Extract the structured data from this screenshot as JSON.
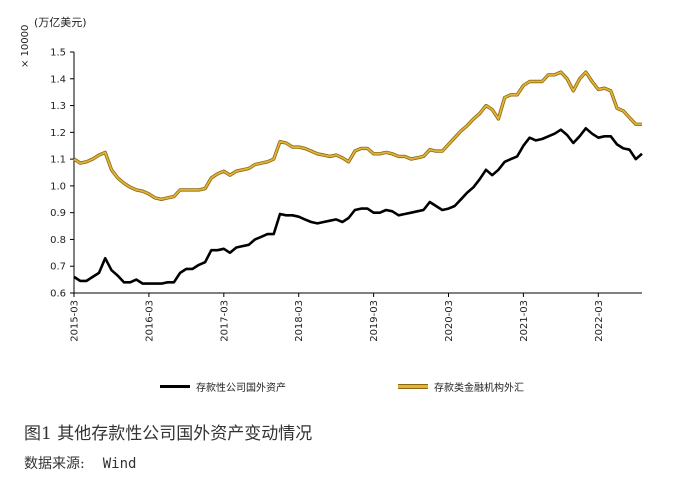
{
  "unit_label": "(万亿美元)",
  "scale_label": "× 10000",
  "caption": "图1    其他存款性公司国外资产变动情况",
  "source_label": "数据来源:",
  "source_value": "Wind",
  "colors": {
    "series1": "#000000",
    "series2": "#e3b33a",
    "series2_outline": "#8a6a10",
    "axis": "#000000"
  },
  "chart_data": {
    "type": "line",
    "title": "",
    "xlabel": "",
    "ylabel": "(万亿美元)",
    "ylim": [
      0.6,
      1.5
    ],
    "yticks": [
      "0.6",
      "0.7",
      "0.8",
      "0.9",
      "1.0",
      "1.1",
      "1.2",
      "1.3",
      "1.4",
      "1.5"
    ],
    "x_start": "2015-03",
    "xticks": [
      "2015-03",
      "2016-03",
      "2017-03",
      "2018-03",
      "2019-03",
      "2020-03",
      "2021-03",
      "2022-03"
    ],
    "legend_position": "bottom",
    "grid": false,
    "series": [
      {
        "name": "存款性公司国外资产",
        "values": [
          0.66,
          0.645,
          0.645,
          0.66,
          0.675,
          0.73,
          0.685,
          0.665,
          0.64,
          0.64,
          0.65,
          0.635,
          0.635,
          0.635,
          0.635,
          0.64,
          0.64,
          0.675,
          0.69,
          0.69,
          0.705,
          0.715,
          0.76,
          0.76,
          0.765,
          0.75,
          0.77,
          0.775,
          0.78,
          0.8,
          0.81,
          0.82,
          0.82,
          0.895,
          0.89,
          0.89,
          0.885,
          0.875,
          0.865,
          0.86,
          0.865,
          0.87,
          0.875,
          0.865,
          0.88,
          0.91,
          0.915,
          0.915,
          0.9,
          0.9,
          0.91,
          0.905,
          0.89,
          0.895,
          0.9,
          0.905,
          0.91,
          0.94,
          0.925,
          0.91,
          0.915,
          0.925,
          0.95,
          0.975,
          0.995,
          1.025,
          1.06,
          1.04,
          1.06,
          1.09,
          1.1,
          1.11,
          1.15,
          1.18,
          1.17,
          1.175,
          1.185,
          1.195,
          1.21,
          1.19,
          1.16,
          1.185,
          1.215,
          1.195,
          1.18,
          1.185,
          1.185,
          1.155,
          1.14,
          1.135,
          1.1,
          1.12
        ]
      },
      {
        "name": "存款类金融机构外汇",
        "values": [
          1.1,
          1.085,
          1.09,
          1.1,
          1.115,
          1.125,
          1.06,
          1.03,
          1.01,
          0.995,
          0.985,
          0.98,
          0.97,
          0.955,
          0.95,
          0.955,
          0.96,
          0.985,
          0.985,
          0.985,
          0.985,
          0.99,
          1.03,
          1.045,
          1.055,
          1.04,
          1.055,
          1.06,
          1.065,
          1.08,
          1.085,
          1.09,
          1.1,
          1.165,
          1.16,
          1.145,
          1.145,
          1.14,
          1.13,
          1.12,
          1.115,
          1.11,
          1.115,
          1.105,
          1.09,
          1.13,
          1.14,
          1.14,
          1.12,
          1.12,
          1.125,
          1.12,
          1.11,
          1.11,
          1.1,
          1.105,
          1.11,
          1.135,
          1.13,
          1.13,
          1.155,
          1.18,
          1.205,
          1.225,
          1.25,
          1.27,
          1.3,
          1.285,
          1.25,
          1.33,
          1.34,
          1.34,
          1.375,
          1.39,
          1.39,
          1.39,
          1.415,
          1.415,
          1.425,
          1.4,
          1.355,
          1.4,
          1.425,
          1.39,
          1.36,
          1.365,
          1.355,
          1.29,
          1.28,
          1.255,
          1.23,
          1.23
        ]
      }
    ]
  }
}
